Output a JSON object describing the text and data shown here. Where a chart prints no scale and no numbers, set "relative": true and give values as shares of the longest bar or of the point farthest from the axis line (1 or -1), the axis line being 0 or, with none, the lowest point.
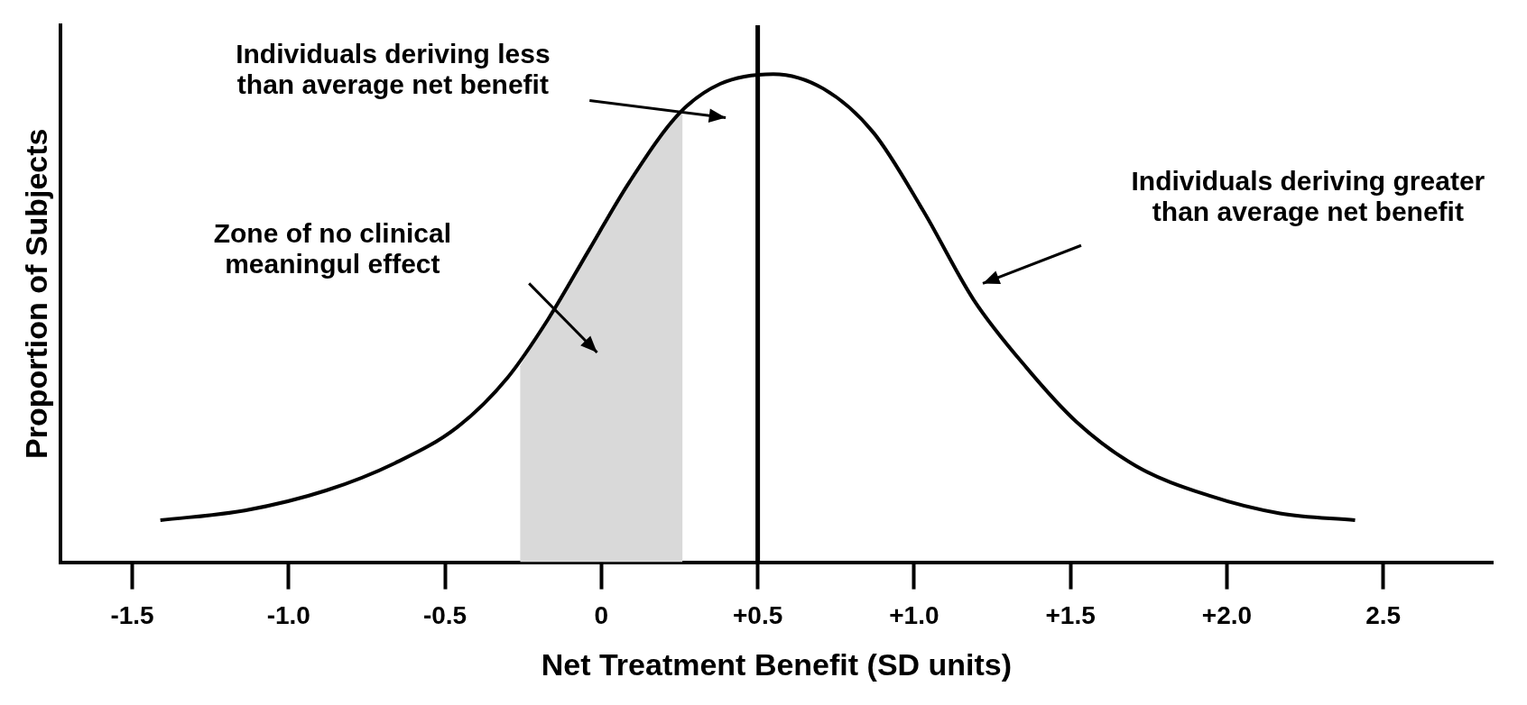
{
  "chart_data": {
    "type": "line",
    "relative": true,
    "xlabel": "Net Treatment Benefit (SD units)",
    "ylabel": "Proportion of Subjects",
    "tick_labels": "x",
    "grid": false,
    "legend": false,
    "marker": "none",
    "line_style": "solid",
    "xlim": [
      -1.73,
      2.85
    ],
    "xticks": [
      {
        "value": -1.5,
        "label": "-1.5"
      },
      {
        "value": -1,
        "label": "-1.0"
      },
      {
        "value": -0.5,
        "label": "-0.5"
      },
      0,
      {
        "value": 0.5,
        "label": "+0.5"
      },
      {
        "value": 1,
        "label": "+1.0"
      },
      {
        "value": 1.5,
        "label": "+1.5"
      },
      {
        "value": 2,
        "label": "+2.0"
      },
      2.5
    ],
    "series": [
      {
        "type": "area",
        "color": "#d9d9d9",
        "x": [
          -0.26,
          -0.17,
          -0.04,
          0.09,
          0.26
        ],
        "values": [
          0.4,
          0.498,
          0.639,
          0.779,
          0.925
        ]
      },
      {
        "color": "#000000",
        "x": [
          -1.41,
          -1.14,
          -0.88,
          -0.66,
          -0.46,
          -0.3,
          -0.17,
          -0.04,
          0.09,
          0.25,
          0.38,
          0.55,
          0.71,
          0.87,
          1.03,
          1.19,
          1.36,
          1.52,
          1.71,
          1.94,
          2.17,
          2.41
        ],
        "values": [
          0.086,
          0.106,
          0.147,
          0.203,
          0.277,
          0.378,
          0.498,
          0.639,
          0.779,
          0.92,
          0.98,
          1,
          0.97,
          0.88,
          0.719,
          0.538,
          0.398,
          0.287,
          0.197,
          0.137,
          0.1,
          0.086
        ]
      }
    ],
    "ref_lines": [
      {
        "axis": "x",
        "value": 0.5,
        "color": "#000000"
      }
    ],
    "annotations": [
      "Individuals deriving less than average net benefit",
      "Zone of no clinical meaningul effect",
      "Individuals deriving greater than average net benefit"
    ]
  }
}
